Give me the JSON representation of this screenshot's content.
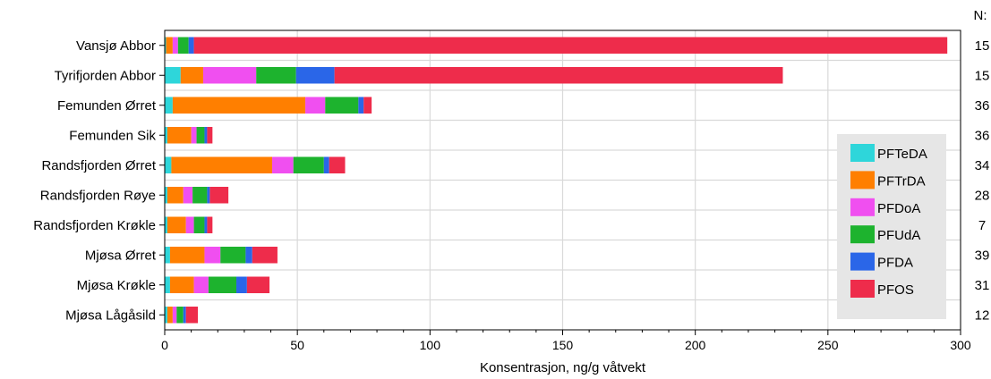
{
  "chart_data": {
    "type": "bar",
    "orientation": "horizontal",
    "stacked": true,
    "xlabel": "Konsentrasjon, ng/g våtvekt",
    "xlim": [
      0,
      300
    ],
    "xticks": [
      0,
      50,
      100,
      150,
      200,
      250,
      300
    ],
    "grid": true,
    "legend_position": "right",
    "n_header": "N:",
    "categories": [
      "Vansjø Abbor",
      "Tyrifjorden Abbor",
      "Femunden Ørret",
      "Femunden Sik",
      "Randsfjorden Ørret",
      "Randsfjorden Røye",
      "Randsfjorden Krøkle",
      "Mjøsa Ørret",
      "Mjøsa Krøkle",
      "Mjøsa Lågåsild"
    ],
    "n_values": [
      "15",
      "15",
      "36",
      "36",
      "34",
      "28",
      "7",
      "39",
      "31",
      "12"
    ],
    "series": [
      {
        "name": "PFTeDA",
        "color": "#2ED6DA",
        "values": [
          0.5,
          6,
          3,
          1,
          2.5,
          1,
          1,
          2,
          2,
          1
        ]
      },
      {
        "name": "PFTrDA",
        "color": "#FF7F00",
        "values": [
          2.5,
          8.5,
          50,
          9,
          38,
          6,
          7,
          13,
          9,
          2
        ]
      },
      {
        "name": "PFDoA",
        "color": "#F04FF0",
        "values": [
          2,
          20,
          7.5,
          2,
          8,
          3.5,
          3,
          6,
          5.5,
          1.5
        ]
      },
      {
        "name": "PFUdA",
        "color": "#1DB32E",
        "values": [
          4,
          15,
          12.5,
          3,
          11.5,
          5.5,
          4,
          9.5,
          10.5,
          2.5
        ]
      },
      {
        "name": "PFDA",
        "color": "#2A66E8",
        "values": [
          2,
          14.5,
          2,
          1,
          2,
          1,
          1,
          2.5,
          4,
          1
        ]
      },
      {
        "name": "PFOS",
        "color": "#EE2C4B",
        "values": [
          284,
          169,
          3,
          2,
          6,
          7,
          2,
          9.5,
          8.5,
          4.5
        ]
      }
    ]
  }
}
